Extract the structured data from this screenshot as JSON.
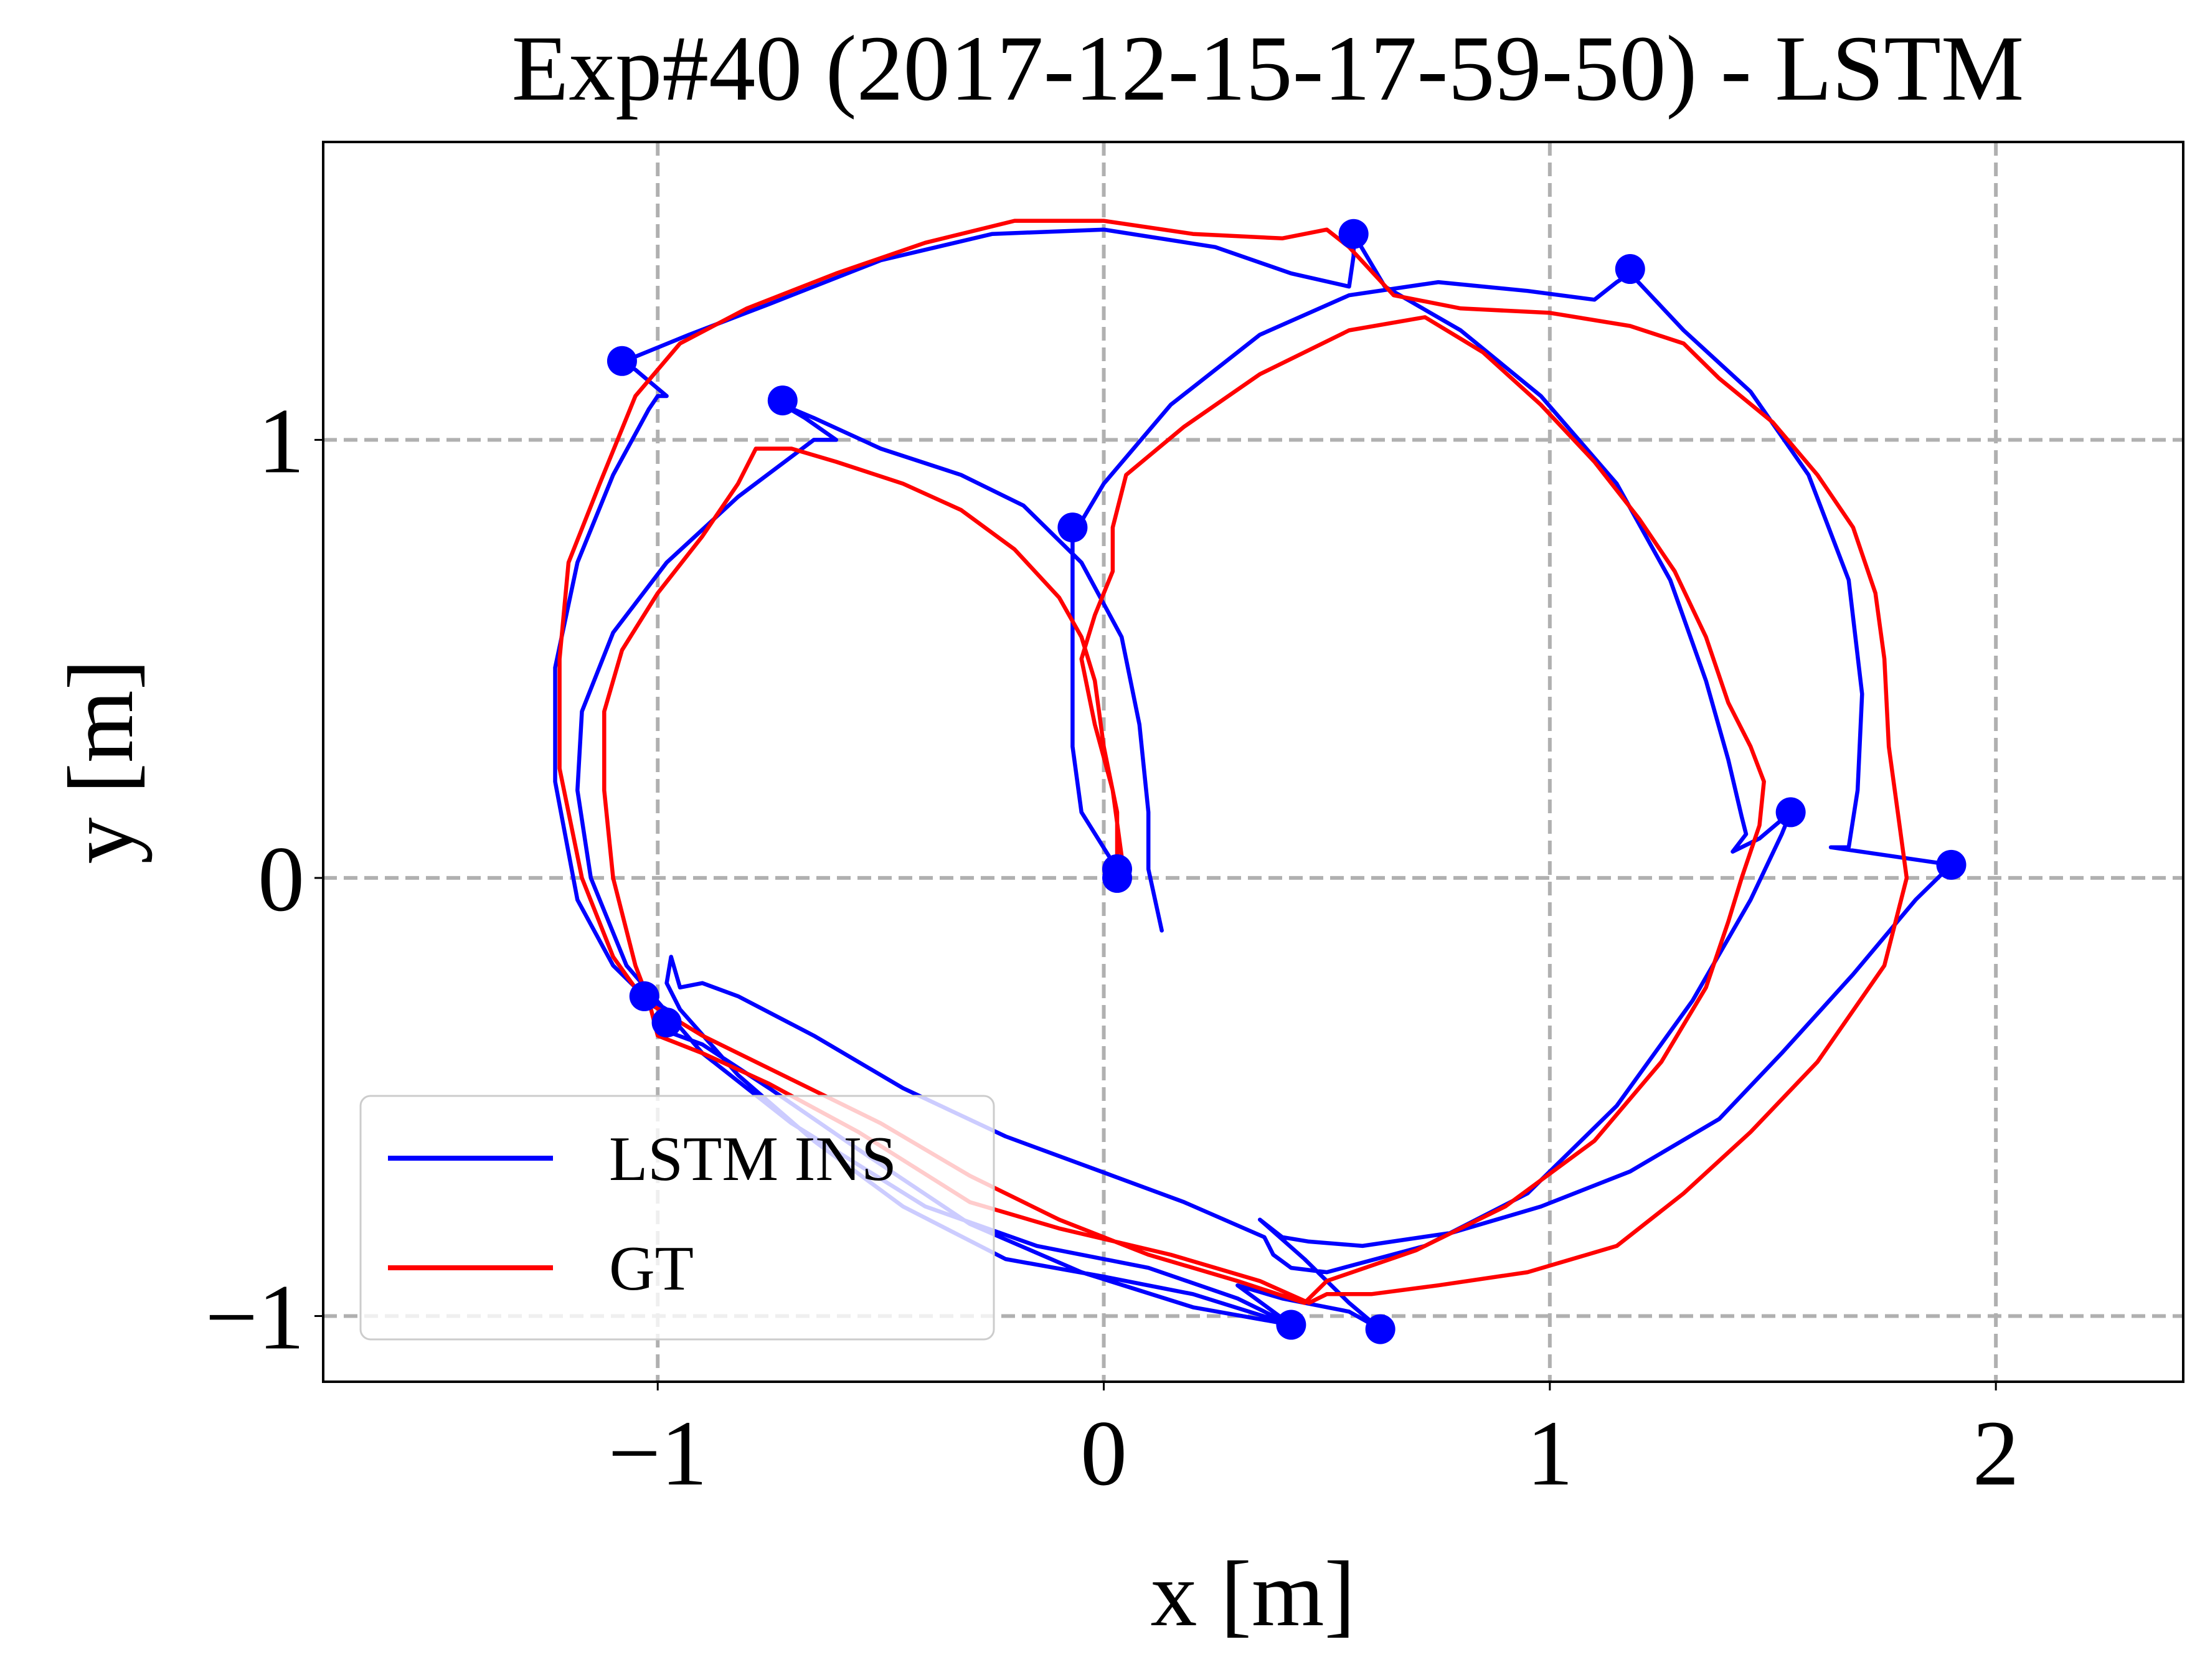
{
  "chart_data": {
    "type": "line",
    "title": "Exp#40 (2017-12-15-17-59-50) - LSTM",
    "xlabel": "x [m]",
    "ylabel": "y [m]",
    "xlim": [
      -1.75,
      2.42
    ],
    "ylim": [
      -1.15,
      1.68
    ],
    "xticks": [
      -1,
      0,
      1,
      2
    ],
    "yticks": [
      -1,
      0,
      1
    ],
    "xtick_labels": [
      "−1",
      "0",
      "1",
      "2"
    ],
    "ytick_labels": [
      "−1",
      "0",
      "1"
    ],
    "grid": true,
    "legend_position": "lower-left",
    "series": [
      {
        "name": "LSTM INS",
        "color": "#0000ff",
        "points": [
          [
            0.03,
            0.02
          ],
          [
            -0.05,
            0.15
          ],
          [
            -0.07,
            0.3
          ],
          [
            -0.07,
            0.5
          ],
          [
            -0.07,
            0.65
          ],
          [
            -0.07,
            0.78
          ],
          [
            0.0,
            0.9
          ],
          [
            0.15,
            1.08
          ],
          [
            0.35,
            1.24
          ],
          [
            0.55,
            1.33
          ],
          [
            0.75,
            1.36
          ],
          [
            0.95,
            1.34
          ],
          [
            1.1,
            1.32
          ],
          [
            1.15,
            1.36
          ],
          [
            1.18,
            1.38
          ],
          [
            1.3,
            1.25
          ],
          [
            1.45,
            1.11
          ],
          [
            1.58,
            0.92
          ],
          [
            1.67,
            0.68
          ],
          [
            1.7,
            0.42
          ],
          [
            1.69,
            0.2
          ],
          [
            1.67,
            0.07
          ],
          [
            1.63,
            0.07
          ],
          [
            1.9,
            0.03
          ],
          [
            1.82,
            -0.05
          ],
          [
            1.68,
            -0.22
          ],
          [
            1.52,
            -0.4
          ],
          [
            1.38,
            -0.55
          ],
          [
            1.18,
            -0.67
          ],
          [
            0.98,
            -0.75
          ],
          [
            0.78,
            -0.81
          ],
          [
            0.58,
            -0.84
          ],
          [
            0.46,
            -0.83
          ],
          [
            0.4,
            -0.82
          ],
          [
            0.35,
            -0.78
          ],
          [
            0.45,
            -0.87
          ],
          [
            0.55,
            -0.97
          ],
          [
            0.62,
            -1.03
          ],
          [
            0.55,
            -0.99
          ],
          [
            0.4,
            -0.96
          ],
          [
            0.3,
            -0.93
          ],
          [
            0.42,
            -1.02
          ],
          [
            0.2,
            -0.95
          ],
          [
            0.0,
            -0.91
          ],
          [
            -0.22,
            -0.87
          ],
          [
            -0.45,
            -0.75
          ],
          [
            -0.65,
            -0.6
          ],
          [
            -0.82,
            -0.45
          ],
          [
            -0.95,
            -0.3
          ],
          [
            -0.98,
            -0.24
          ],
          [
            -0.97,
            -0.18
          ],
          [
            -0.95,
            -0.25
          ],
          [
            -0.9,
            -0.24
          ],
          [
            -0.82,
            -0.27
          ],
          [
            -0.65,
            -0.36
          ],
          [
            -0.45,
            -0.48
          ],
          [
            -0.22,
            -0.59
          ],
          [
            0.02,
            -0.68
          ],
          [
            0.18,
            -0.74
          ],
          [
            0.36,
            -0.82
          ],
          [
            0.38,
            -0.86
          ],
          [
            0.42,
            -0.89
          ],
          [
            0.5,
            -0.9
          ],
          [
            0.72,
            -0.84
          ],
          [
            0.95,
            -0.72
          ],
          [
            1.15,
            -0.52
          ],
          [
            1.32,
            -0.28
          ],
          [
            1.45,
            -0.05
          ],
          [
            1.52,
            0.1
          ],
          [
            1.54,
            0.15
          ],
          [
            1.47,
            0.09
          ],
          [
            1.41,
            0.06
          ],
          [
            1.44,
            0.1
          ],
          [
            1.43,
            0.14
          ],
          [
            1.4,
            0.27
          ],
          [
            1.35,
            0.45
          ],
          [
            1.27,
            0.68
          ],
          [
            1.15,
            0.9
          ],
          [
            0.98,
            1.1
          ],
          [
            0.8,
            1.25
          ],
          [
            0.63,
            1.35
          ],
          [
            0.56,
            1.47
          ],
          [
            0.56,
            1.42
          ],
          [
            0.55,
            1.35
          ],
          [
            0.42,
            1.38
          ],
          [
            0.25,
            1.44
          ],
          [
            0.0,
            1.48
          ],
          [
            -0.25,
            1.47
          ],
          [
            -0.5,
            1.41
          ],
          [
            -0.75,
            1.31
          ],
          [
            -0.93,
            1.24
          ],
          [
            -1.05,
            1.19
          ],
          [
            -1.08,
            1.18
          ],
          [
            -1.05,
            1.16
          ],
          [
            -0.98,
            1.1
          ],
          [
            -1.0,
            1.1
          ],
          [
            -1.02,
            1.07
          ],
          [
            -1.1,
            0.92
          ],
          [
            -1.18,
            0.72
          ],
          [
            -1.23,
            0.48
          ],
          [
            -1.23,
            0.22
          ],
          [
            -1.18,
            -0.05
          ],
          [
            -1.1,
            -0.2
          ],
          [
            -1.03,
            -0.27
          ],
          [
            -0.98,
            -0.3
          ],
          [
            -0.96,
            -0.33
          ],
          [
            -0.98,
            -0.35
          ],
          [
            -0.9,
            -0.38
          ],
          [
            -0.75,
            -0.48
          ],
          [
            -0.55,
            -0.62
          ],
          [
            -0.3,
            -0.79
          ],
          [
            -0.05,
            -0.9
          ],
          [
            0.2,
            -0.98
          ],
          [
            0.42,
            -1.02
          ],
          [
            0.3,
            -0.96
          ],
          [
            0.1,
            -0.89
          ],
          [
            -0.15,
            -0.84
          ],
          [
            -0.4,
            -0.75
          ],
          [
            -0.7,
            -0.56
          ],
          [
            -0.9,
            -0.4
          ],
          [
            -1.07,
            -0.2
          ],
          [
            -1.15,
            0.0
          ],
          [
            -1.18,
            0.2
          ],
          [
            -1.17,
            0.38
          ],
          [
            -1.1,
            0.56
          ],
          [
            -0.98,
            0.72
          ],
          [
            -0.82,
            0.87
          ],
          [
            -0.65,
            1.0
          ],
          [
            -0.6,
            1.0
          ],
          [
            -0.67,
            1.05
          ],
          [
            -0.72,
            1.08
          ],
          [
            -0.65,
            1.05
          ],
          [
            -0.5,
            0.98
          ],
          [
            -0.32,
            0.92
          ],
          [
            -0.18,
            0.85
          ],
          [
            -0.05,
            0.72
          ],
          [
            0.04,
            0.55
          ],
          [
            0.08,
            0.35
          ],
          [
            0.1,
            0.15
          ],
          [
            0.1,
            0.02
          ],
          [
            0.13,
            -0.12
          ]
        ],
        "markers": [
          [
            0.03,
            0.02
          ],
          [
            -0.07,
            0.8
          ],
          [
            1.18,
            1.39
          ],
          [
            1.9,
            0.03
          ],
          [
            0.62,
            -1.03
          ],
          [
            1.54,
            0.15
          ],
          [
            0.56,
            1.47
          ],
          [
            -1.08,
            1.18
          ],
          [
            -1.03,
            -0.27
          ],
          [
            -0.98,
            -0.33
          ],
          [
            0.42,
            -1.02
          ],
          [
            -0.72,
            1.09
          ],
          [
            0.03,
            -0.0
          ]
        ]
      },
      {
        "name": "GT",
        "color": "#ff0000",
        "points": [
          [
            0.03,
            0.03
          ],
          [
            0.03,
            0.15
          ],
          [
            0.0,
            0.3
          ],
          [
            -0.02,
            0.45
          ],
          [
            -0.05,
            0.55
          ],
          [
            -0.1,
            0.64
          ],
          [
            -0.2,
            0.75
          ],
          [
            -0.32,
            0.84
          ],
          [
            -0.45,
            0.9
          ],
          [
            -0.6,
            0.95
          ],
          [
            -0.7,
            0.98
          ],
          [
            -0.78,
            0.98
          ],
          [
            -0.82,
            0.9
          ],
          [
            -0.9,
            0.78
          ],
          [
            -1.0,
            0.65
          ],
          [
            -1.08,
            0.52
          ],
          [
            -1.12,
            0.38
          ],
          [
            -1.12,
            0.2
          ],
          [
            -1.1,
            0.0
          ],
          [
            -1.07,
            -0.12
          ],
          [
            -1.05,
            -0.2
          ],
          [
            -1.02,
            -0.28
          ],
          [
            -1.0,
            -0.36
          ],
          [
            -0.9,
            -0.4
          ],
          [
            -0.75,
            -0.47
          ],
          [
            -0.55,
            -0.58
          ],
          [
            -0.3,
            -0.74
          ],
          [
            -0.1,
            -0.8
          ],
          [
            0.15,
            -0.86
          ],
          [
            0.35,
            -0.92
          ],
          [
            0.46,
            -0.97
          ],
          [
            0.5,
            -0.95
          ],
          [
            0.6,
            -0.95
          ],
          [
            0.75,
            -0.93
          ],
          [
            0.95,
            -0.9
          ],
          [
            1.15,
            -0.84
          ],
          [
            1.3,
            -0.72
          ],
          [
            1.45,
            -0.58
          ],
          [
            1.6,
            -0.42
          ],
          [
            1.75,
            -0.2
          ],
          [
            1.8,
            0.0
          ],
          [
            1.78,
            0.15
          ],
          [
            1.76,
            0.3
          ],
          [
            1.75,
            0.5
          ],
          [
            1.73,
            0.65
          ],
          [
            1.68,
            0.8
          ],
          [
            1.6,
            0.92
          ],
          [
            1.5,
            1.04
          ],
          [
            1.38,
            1.14
          ],
          [
            1.3,
            1.22
          ],
          [
            1.18,
            1.26
          ],
          [
            1.0,
            1.29
          ],
          [
            0.8,
            1.3
          ],
          [
            0.65,
            1.33
          ],
          [
            0.55,
            1.44
          ],
          [
            0.5,
            1.48
          ],
          [
            0.4,
            1.46
          ],
          [
            0.2,
            1.47
          ],
          [
            0.0,
            1.5
          ],
          [
            -0.2,
            1.5
          ],
          [
            -0.4,
            1.45
          ],
          [
            -0.6,
            1.38
          ],
          [
            -0.8,
            1.3
          ],
          [
            -0.95,
            1.22
          ],
          [
            -1.05,
            1.1
          ],
          [
            -1.13,
            0.9
          ],
          [
            -1.2,
            0.72
          ],
          [
            -1.22,
            0.5
          ],
          [
            -1.22,
            0.25
          ],
          [
            -1.17,
            0.0
          ],
          [
            -1.1,
            -0.18
          ],
          [
            -1.03,
            -0.28
          ],
          [
            -0.9,
            -0.36
          ],
          [
            -0.7,
            -0.46
          ],
          [
            -0.5,
            -0.56
          ],
          [
            -0.3,
            -0.68
          ],
          [
            -0.1,
            -0.78
          ],
          [
            0.1,
            -0.86
          ],
          [
            0.3,
            -0.92
          ],
          [
            0.45,
            -0.97
          ],
          [
            0.5,
            -0.92
          ],
          [
            0.7,
            -0.85
          ],
          [
            0.9,
            -0.75
          ],
          [
            1.1,
            -0.6
          ],
          [
            1.25,
            -0.42
          ],
          [
            1.35,
            -0.25
          ],
          [
            1.4,
            -0.1
          ],
          [
            1.43,
            0.0
          ],
          [
            1.47,
            0.12
          ],
          [
            1.48,
            0.22
          ],
          [
            1.45,
            0.3
          ],
          [
            1.4,
            0.4
          ],
          [
            1.35,
            0.55
          ],
          [
            1.28,
            0.7
          ],
          [
            1.2,
            0.82
          ],
          [
            1.1,
            0.95
          ],
          [
            0.98,
            1.08
          ],
          [
            0.85,
            1.2
          ],
          [
            0.72,
            1.28
          ],
          [
            0.55,
            1.25
          ],
          [
            0.35,
            1.15
          ],
          [
            0.18,
            1.03
          ],
          [
            0.05,
            0.92
          ],
          [
            0.02,
            0.8
          ],
          [
            0.02,
            0.7
          ],
          [
            -0.02,
            0.6
          ],
          [
            -0.05,
            0.5
          ],
          [
            -0.02,
            0.35
          ],
          [
            0.02,
            0.2
          ],
          [
            0.04,
            0.05
          ]
        ]
      }
    ]
  }
}
